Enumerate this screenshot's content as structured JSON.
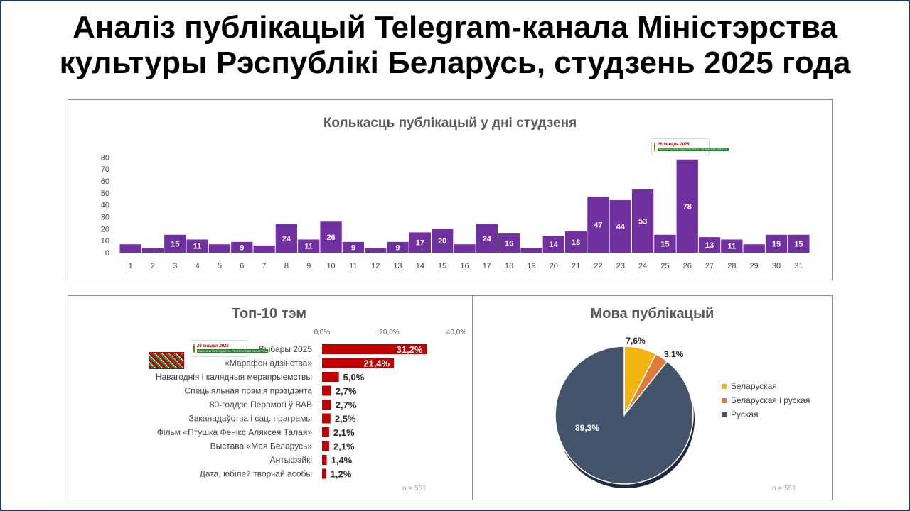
{
  "title": {
    "line1": "Аналіз публікацый Telegram-канала Міністэрства",
    "line2": "культуры Рэспублікі Беларусь, студзень 2025 года"
  },
  "badge": {
    "date": "26 января 2025",
    "subtitle": "ВЫБОРЫ ПРЕЗИДЕНТА РЕСПУБЛИКИ БЕЛАРУСЬ"
  },
  "colors": {
    "bar": "#7030a0",
    "topic_bar": "#c00000",
    "border": "#1f3864",
    "title_text": "#595959"
  },
  "chart_data": [
    {
      "type": "bar",
      "title": "Колькасць публікацый у дні студзеня",
      "categories": [
        "1",
        "2",
        "3",
        "4",
        "5",
        "6",
        "7",
        "8",
        "9",
        "10",
        "11",
        "12",
        "13",
        "14",
        "15",
        "16",
        "17",
        "18",
        "19",
        "20",
        "21",
        "22",
        "23",
        "24",
        "25",
        "26",
        "27",
        "28",
        "29",
        "30",
        "31"
      ],
      "values": [
        7,
        4,
        15,
        11,
        7,
        9,
        6,
        24,
        11,
        26,
        9,
        4,
        9,
        17,
        20,
        7,
        24,
        16,
        4,
        14,
        18,
        47,
        44,
        53,
        15,
        78,
        13,
        11,
        7,
        15,
        15
      ],
      "data_labels": [
        "",
        "",
        "15",
        "11",
        "",
        "9",
        "",
        "24",
        "11",
        "26",
        "9",
        "",
        "9",
        "17",
        "20",
        "",
        "24",
        "16",
        "",
        "14",
        "18",
        "47",
        "44",
        "53",
        "15",
        "78",
        "13",
        "11",
        "",
        "15",
        "15"
      ],
      "yticks": [
        0,
        10,
        20,
        30,
        40,
        50,
        60,
        70,
        80
      ],
      "ylim": [
        0,
        85
      ],
      "grid": false,
      "legend": "none"
    },
    {
      "type": "bar",
      "orientation": "horizontal",
      "title": "Топ-10 тэм",
      "categories": [
        "Выбары 2025",
        "«Марафон адзінства»",
        "Навагоднія і калядныя мерапрыемствы",
        "Спецыяльная прэмія прэзідэнта",
        "80-годдзе Перамогі ў ВАВ",
        "Заканадаўства і сац. праграмы",
        "Фільм «Птушка Фенікс Аляксея Талая»",
        "Выстава «Мая Беларусь»",
        "Антыфэйкі",
        "Дата, юбілей творчай асобы"
      ],
      "values": [
        31.2,
        21.4,
        5.0,
        2.7,
        2.7,
        2.5,
        2.1,
        2.1,
        1.4,
        1.2
      ],
      "data_labels": [
        "31,2%",
        "21,4%",
        "5,0%",
        "2,7%",
        "2,7%",
        "2,5%",
        "2,1%",
        "2,1%",
        "1,4%",
        "1,2%"
      ],
      "xticks": [
        "0,0%",
        "20,0%",
        "40,0%"
      ],
      "xlim": [
        0,
        40
      ],
      "note": "n = 561"
    },
    {
      "type": "pie",
      "title": "Мова публікацый",
      "labels": [
        "Беларуская",
        "Беларуская і руская",
        "Руская"
      ],
      "values": [
        7.6,
        3.1,
        89.3
      ],
      "data_labels": [
        "7,6%",
        "3,1%",
        "89,3%"
      ],
      "colors": [
        "#f2b50f",
        "#e07b39",
        "#44546a"
      ],
      "legend": "right",
      "note": "n = 551"
    }
  ]
}
